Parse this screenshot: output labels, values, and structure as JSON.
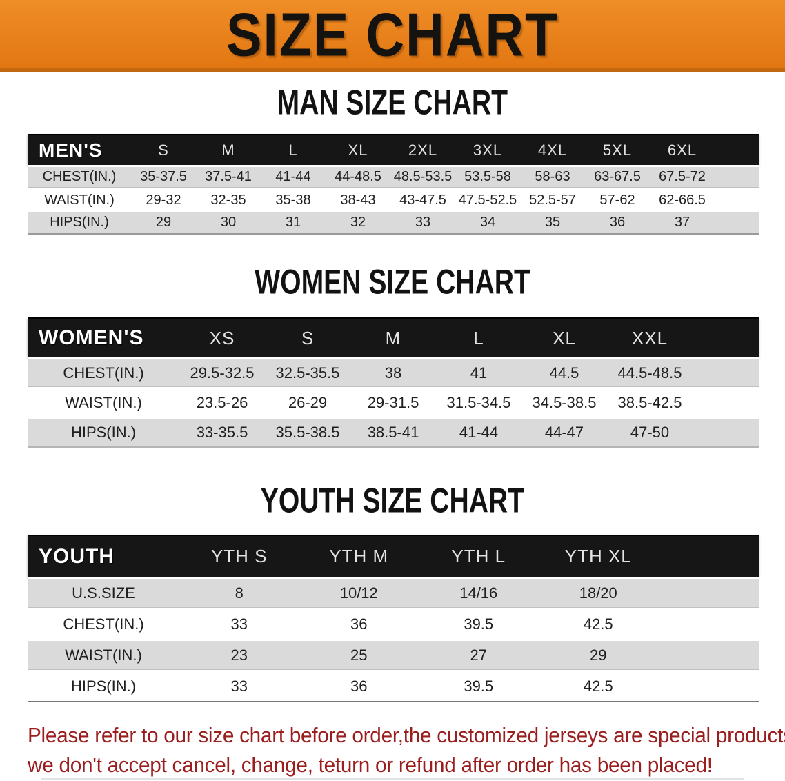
{
  "banner": {
    "title": "SIZE CHART"
  },
  "colors": {
    "banner_orange": "#E8811C",
    "banner_border": "#C2690F",
    "header_black": "#161616",
    "row_gray": "#DADADA",
    "disclaimer_red": "#9B1E1E"
  },
  "sections": [
    {
      "heading": "MAN SIZE CHART",
      "group_label": "MEN'S",
      "sizes": [
        "S",
        "M",
        "L",
        "XL",
        "2XL",
        "3XL",
        "4XL",
        "5XL",
        "6XL"
      ],
      "rows": [
        {
          "label": "CHEST(IN.)",
          "values": [
            "35-37.5",
            "37.5-41",
            "41-44",
            "44-48.5",
            "48.5-53.5",
            "53.5-58",
            "58-63",
            "63-67.5",
            "67.5-72"
          ]
        },
        {
          "label": "WAIST(IN.)",
          "values": [
            "29-32",
            "32-35",
            "35-38",
            "38-43",
            "43-47.5",
            "47.5-52.5",
            "52.5-57",
            "57-62",
            "62-66.5"
          ]
        },
        {
          "label": "HIPS(IN.)",
          "values": [
            "29",
            "30",
            "31",
            "32",
            "33",
            "34",
            "35",
            "36",
            "37"
          ]
        }
      ]
    },
    {
      "heading": "WOMEN SIZE CHART",
      "group_label": "WOMEN'S",
      "sizes": [
        "XS",
        "S",
        "M",
        "L",
        "XL",
        "XXL"
      ],
      "rows": [
        {
          "label": "CHEST(IN.)",
          "values": [
            "29.5-32.5",
            "32.5-35.5",
            "38",
            "41",
            "44.5",
            "44.5-48.5"
          ]
        },
        {
          "label": "WAIST(IN.)",
          "values": [
            "23.5-26",
            "26-29",
            "29-31.5",
            "31.5-34.5",
            "34.5-38.5",
            "38.5-42.5"
          ]
        },
        {
          "label": "HIPS(IN.)",
          "values": [
            "33-35.5",
            "35.5-38.5",
            "38.5-41",
            "41-44",
            "44-47",
            "47-50"
          ]
        }
      ]
    },
    {
      "heading": "YOUTH SIZE CHART",
      "group_label": "YOUTH",
      "sizes": [
        "YTH S",
        "YTH M",
        "YTH L",
        "YTH XL"
      ],
      "rows": [
        {
          "label": "U.S.SIZE",
          "values": [
            "8",
            "10/12",
            "14/16",
            "18/20"
          ]
        },
        {
          "label": "CHEST(IN.)",
          "values": [
            "33",
            "36",
            "39.5",
            "42.5"
          ]
        },
        {
          "label": "WAIST(IN.)",
          "values": [
            "23",
            "25",
            "27",
            "29"
          ]
        },
        {
          "label": "HIPS(IN.)",
          "values": [
            "33",
            "36",
            "39.5",
            "42.5"
          ]
        }
      ]
    }
  ],
  "disclaimer": {
    "lines": [
      "Please refer to our size chart before order,the customized jerseys are special products,",
      "we don't accept cancel, change, teturn or refund after order has been placed!"
    ]
  }
}
